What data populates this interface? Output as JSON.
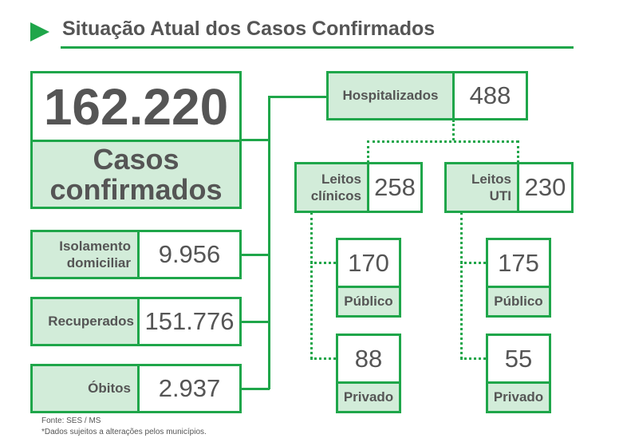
{
  "title": "Situação Atual dos Casos Confirmados",
  "confirmed": {
    "value": "162.220",
    "label_line1": "Casos",
    "label_line2": "confirmados"
  },
  "isolation": {
    "label_line1": "Isolamento",
    "label_line2": "domiciliar",
    "value": "9.956"
  },
  "recovered": {
    "label": "Recuperados",
    "value": "151.776"
  },
  "deaths": {
    "label": "Óbitos",
    "value": "2.937"
  },
  "hospitalized": {
    "label": "Hospitalizados",
    "value": "488"
  },
  "clinical_beds": {
    "label_line1": "Leitos",
    "label_line2": "clínicos",
    "value": "258",
    "public": {
      "value": "170",
      "label": "Público"
    },
    "private": {
      "value": "88",
      "label": "Privado"
    }
  },
  "icu_beds": {
    "label_line1": "Leitos",
    "label_line2": "UTI",
    "value": "230",
    "public": {
      "value": "175",
      "label": "Público"
    },
    "private": {
      "value": "55",
      "label": "Privado"
    }
  },
  "footer": {
    "source": "Fonte: SES / MS",
    "note": "*Dados sujeitos a alterações pelos municípios."
  },
  "colors": {
    "accent": "#1fa64a",
    "fill": "#d2ecd9",
    "text": "#555555"
  }
}
